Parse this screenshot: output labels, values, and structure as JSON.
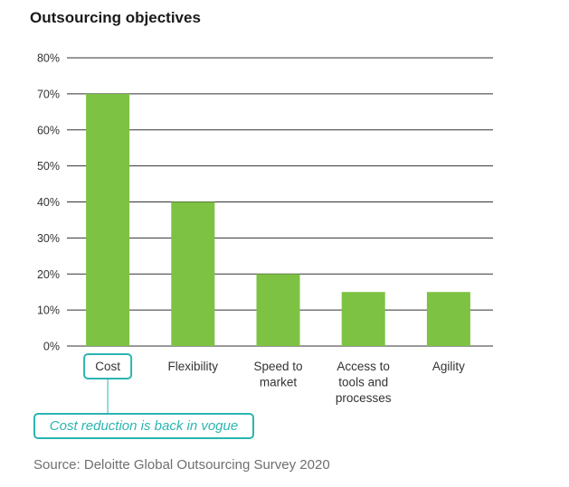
{
  "chart_data": {
    "type": "bar",
    "title": "Outsourcing objectives",
    "categories": [
      "Cost",
      "Flexibility",
      "Speed to market",
      "Access to tools and processes",
      "Agility"
    ],
    "category_lines": [
      [
        "Cost"
      ],
      [
        "Flexibility"
      ],
      [
        "Speed to",
        "market"
      ],
      [
        "Access to",
        "tools and",
        "processes"
      ],
      [
        "Agility"
      ]
    ],
    "values": [
      70,
      40,
      20,
      15,
      15
    ],
    "unit": "%",
    "ylim": [
      0,
      80
    ],
    "yticks": [
      "0%",
      "10%",
      "20%",
      "30%",
      "40%",
      "50%",
      "60%",
      "70%",
      "80%"
    ],
    "grid": true,
    "bar_color": "#7dc242",
    "highlight_category": "Cost",
    "annotation": "Cost reduction is back in vogue",
    "source": "Source: Deloitte Global Outsourcing Survey 2020"
  },
  "colors": {
    "bar": "#7dc242",
    "accent": "#2bb5b0",
    "grid": "#333333",
    "source_text": "#6f6f6f"
  }
}
